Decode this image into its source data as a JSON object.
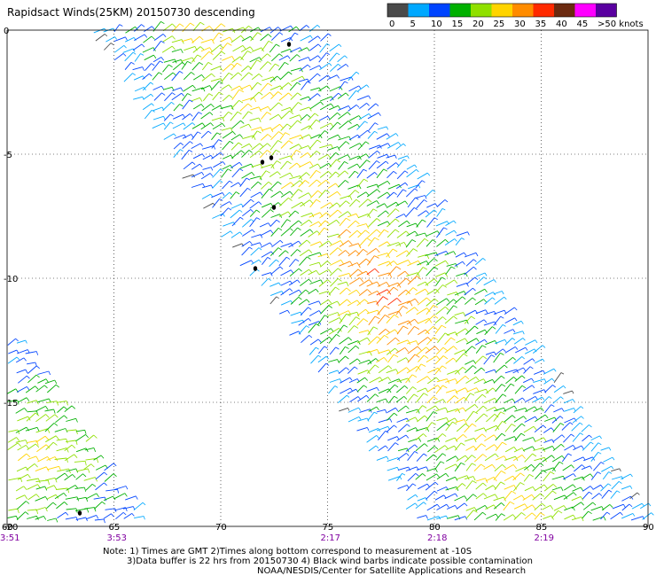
{
  "title": "Rapidsact Winds(25KM) 20150730 descending",
  "legend": {
    "labels": [
      "0",
      "5",
      "10",
      "15",
      "20",
      "25",
      "30",
      "35",
      "40",
      "45",
      ">50 knots"
    ],
    "colors": [
      "#4a4a4a",
      "#00a8ff",
      "#0044ff",
      "#00b000",
      "#90e000",
      "#ffd400",
      "#ff8c00",
      "#ff2a00",
      "#6b2a10",
      "#ff00ff",
      "#5a00a0"
    ]
  },
  "map": {
    "lon_ticks": [
      "60",
      "65",
      "70",
      "75",
      "80",
      "85",
      "90"
    ],
    "lat_ticks": [
      "0",
      "-5",
      "-10",
      "-15",
      "-20"
    ],
    "lon_range": [
      60,
      90
    ],
    "lat_range": [
      0,
      -20
    ],
    "grid": "dotted"
  },
  "times": [
    {
      "label": "3:51",
      "lon": 60
    },
    {
      "label": "3:53",
      "lon": 65
    },
    {
      "label": "2:17",
      "lon": 75
    },
    {
      "label": "2:18",
      "lon": 80
    },
    {
      "label": "2:19",
      "lon": 85
    }
  ],
  "time_color": "#8000a0",
  "notes": {
    "line1": "Note: 1) Times are GMT 2)Times along bottom correspond to measurement at -10S",
    "line2": "3)Data buffer is 22 hrs from 20150730 4) Black wind barbs indicate possible contamination",
    "line3": "NOAA/NESDIS/Center for Satellite Applications and Research"
  }
}
